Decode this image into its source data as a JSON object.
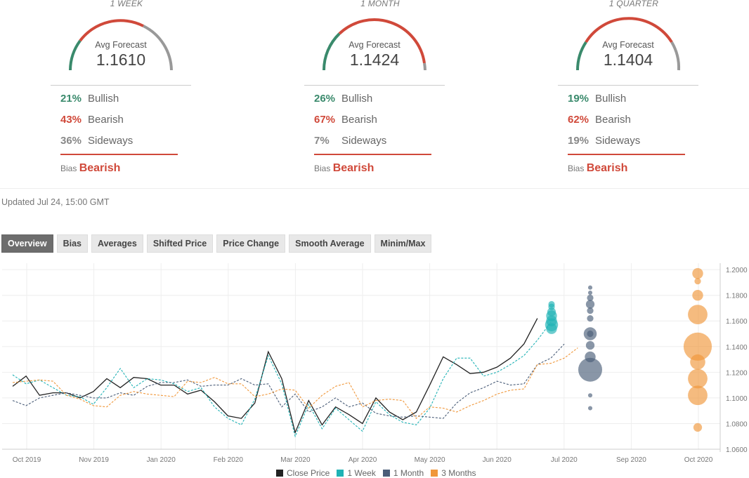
{
  "panels": [
    {
      "title": "1 WEEK",
      "gauge_label": "Avg Forecast",
      "value": "1.1610",
      "bullish": "21%",
      "bearish": "43%",
      "sideways": "36%",
      "bias": "Bearish"
    },
    {
      "title": "1 MONTH",
      "gauge_label": "Avg Forecast",
      "value": "1.1424",
      "bullish": "26%",
      "bearish": "67%",
      "sideways": "7%",
      "bias": "Bearish"
    },
    {
      "title": "1 QUARTER",
      "gauge_label": "Avg Forecast",
      "value": "1.1404",
      "bullish": "19%",
      "bearish": "62%",
      "sideways": "19%",
      "bias": "Bearish"
    }
  ],
  "labels": {
    "bullish": "Bullish",
    "bearish": "Bearish",
    "sideways": "Sideways",
    "bias": "Bias"
  },
  "updated": "Updated Jul 24, 15:00 GMT",
  "tabs": [
    "Overview",
    "Bias",
    "Averages",
    "Shifted Price",
    "Price Change",
    "Smooth Average",
    "Minim/Max"
  ],
  "colors": {
    "bullish": "#3a8a6c",
    "bearish": "#d0493a",
    "sideways": "#999999",
    "close": "#222222",
    "week": "#1fb2b5",
    "month": "#4a5d78",
    "quarter": "#f0973a"
  },
  "chart_data": {
    "type": "line",
    "xlabels": [
      "Oct 2019",
      "Nov 2019",
      "Jan 2020",
      "Feb 2020",
      "Mar 2020",
      "Apr 2020",
      "May 2020",
      "Jun 2020",
      "Jul 2020",
      "Sep 2020",
      "Oct 2020"
    ],
    "yticks": [
      "1.2000",
      "1.1800",
      "1.1600",
      "1.1400",
      "1.1200",
      "1.1000",
      "1.0800",
      "1.0600"
    ],
    "ylim": [
      1.06,
      1.205
    ],
    "series": [
      {
        "name": "Close Price",
        "color": "#222222",
        "dash": "",
        "values": [
          1.109,
          1.117,
          1.102,
          1.104,
          1.104,
          1.1,
          1.105,
          1.115,
          1.108,
          1.116,
          1.115,
          1.11,
          1.11,
          1.103,
          1.106,
          1.097,
          1.086,
          1.084,
          1.096,
          1.136,
          1.115,
          1.073,
          1.098,
          1.079,
          1.093,
          1.087,
          1.08,
          1.1,
          1.089,
          1.083,
          1.089,
          1.11,
          1.132,
          1.126,
          1.119,
          1.12,
          1.124,
          1.131,
          1.142,
          1.162
        ]
      },
      {
        "name": "1 Week",
        "color": "#1fb2b5",
        "dash": "3,2",
        "values": [
          1.118,
          1.111,
          1.114,
          1.108,
          1.102,
          1.101,
          1.095,
          1.108,
          1.123,
          1.108,
          1.115,
          1.114,
          1.111,
          1.105,
          1.108,
          1.093,
          1.084,
          1.079,
          1.099,
          1.133,
          1.111,
          1.07,
          1.095,
          1.076,
          1.092,
          1.083,
          1.074,
          1.097,
          1.087,
          1.081,
          1.079,
          1.092,
          1.115,
          1.131,
          1.131,
          1.117,
          1.12,
          1.126,
          1.133,
          1.145,
          1.159
        ]
      },
      {
        "name": "1 Month",
        "color": "#4a5d78",
        "dash": "3,2",
        "values": [
          1.098,
          1.094,
          1.1,
          1.102,
          1.104,
          1.102,
          1.1,
          1.1,
          1.104,
          1.102,
          1.109,
          1.112,
          1.112,
          1.114,
          1.109,
          1.11,
          1.11,
          1.115,
          1.11,
          1.111,
          1.093,
          1.103,
          1.089,
          1.093,
          1.1,
          1.093,
          1.096,
          1.088,
          1.086,
          1.085,
          1.086,
          1.085,
          1.084,
          1.096,
          1.104,
          1.108,
          1.113,
          1.11,
          1.111,
          1.126,
          1.131,
          1.142
        ]
      },
      {
        "name": "3 Months",
        "color": "#f0973a",
        "dash": "3,2",
        "values": [
          1.112,
          1.113,
          1.114,
          1.113,
          1.102,
          1.099,
          1.094,
          1.093,
          1.102,
          1.105,
          1.103,
          1.102,
          1.101,
          1.113,
          1.112,
          1.116,
          1.111,
          1.111,
          1.101,
          1.103,
          1.107,
          1.106,
          1.092,
          1.102,
          1.109,
          1.112,
          1.093,
          1.098,
          1.099,
          1.098,
          1.084,
          1.093,
          1.092,
          1.089,
          1.094,
          1.098,
          1.103,
          1.106,
          1.107,
          1.126,
          1.127,
          1.131,
          1.139
        ]
      }
    ],
    "forecasts": [
      {
        "name": "1 Week",
        "color": "#1fb2b5",
        "points": [
          {
            "y": 1.16,
            "w": 4
          },
          {
            "y": 1.157,
            "w": 5
          },
          {
            "y": 1.154,
            "w": 4
          },
          {
            "y": 1.164,
            "w": 4
          },
          {
            "y": 1.167,
            "w": 3
          },
          {
            "y": 1.171,
            "w": 2
          },
          {
            "y": 1.173,
            "w": 2
          }
        ]
      },
      {
        "name": "1 Month",
        "color": "#4a5d78",
        "points": [
          {
            "y": 1.122,
            "w": 10
          },
          {
            "y": 1.132,
            "w": 4
          },
          {
            "y": 1.141,
            "w": 3
          },
          {
            "y": 1.15,
            "w": 5
          },
          {
            "y": 1.162,
            "w": 2
          },
          {
            "y": 1.168,
            "w": 2
          },
          {
            "y": 1.173,
            "w": 3
          },
          {
            "y": 1.178,
            "w": 2
          },
          {
            "y": 1.182,
            "w": 1
          },
          {
            "y": 1.186,
            "w": 1
          },
          {
            "y": 1.102,
            "w": 1
          },
          {
            "y": 1.092,
            "w": 1
          },
          {
            "y": 1.15,
            "w": 2
          }
        ]
      },
      {
        "name": "3 Months",
        "color": "#f0973a",
        "points": [
          {
            "y": 1.14,
            "w": 12
          },
          {
            "y": 1.165,
            "w": 8
          },
          {
            "y": 1.128,
            "w": 6
          },
          {
            "y": 1.115,
            "w": 8
          },
          {
            "y": 1.102,
            "w": 8
          },
          {
            "y": 1.18,
            "w": 4
          },
          {
            "y": 1.197,
            "w": 4
          },
          {
            "y": 1.191,
            "w": 2
          },
          {
            "y": 1.077,
            "w": 3
          }
        ]
      }
    ]
  }
}
